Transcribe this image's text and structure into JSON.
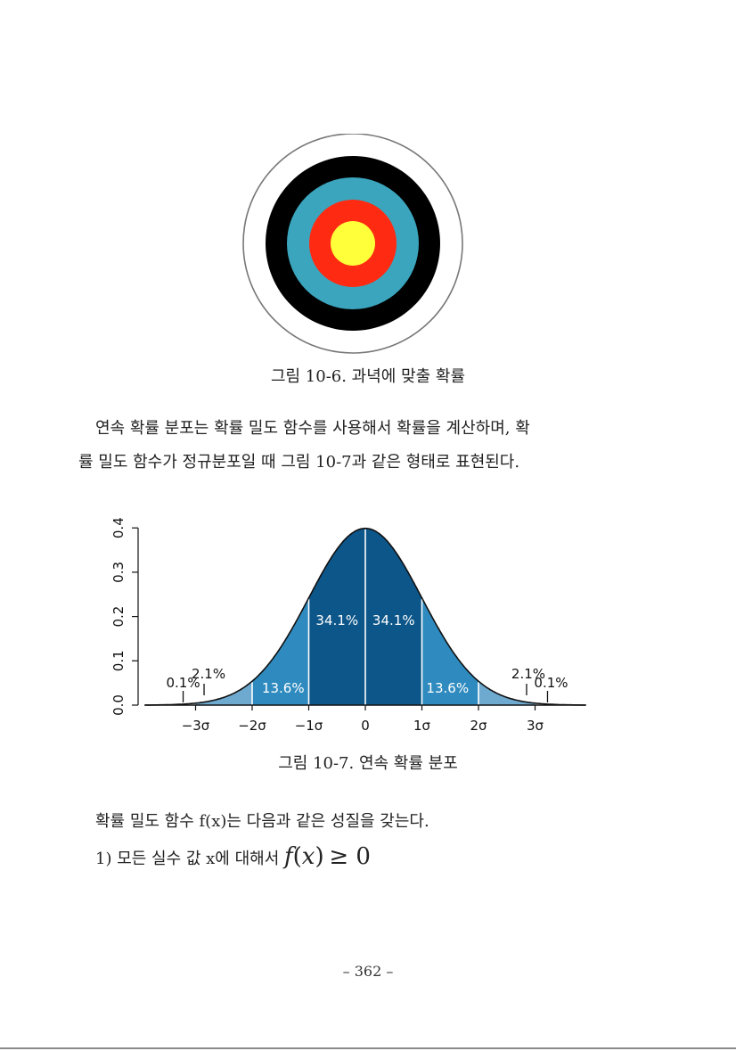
{
  "figure_10_6": {
    "caption": "그림 10-6. 과녁에 맞출 확률",
    "colors": {
      "outer_ring": "#ffffff",
      "outer_ring_stroke": "#777777",
      "black_ring": "#000000",
      "blue_ring": "#3aa5bd",
      "red_ring": "#ff2a12",
      "center": "#ffff3a"
    }
  },
  "paragraph_1": {
    "line_1": "연속 확률 분포는 확률 밀도 함수를 사용해서 확률을 계산하며, 확",
    "line_2": "률 밀도 함수가 정규분포일 때 그림 10-7과 같은 형태로 표현된다."
  },
  "figure_10_7": {
    "caption": "그림 10-7. 연속 확률 분포"
  },
  "chart_data": {
    "type": "area",
    "title": "",
    "xlabel": "",
    "ylabel": "",
    "x_range": [
      -3.9,
      3.9
    ],
    "ylim": [
      0.0,
      0.4
    ],
    "y_ticks": [
      "0.0",
      "0.1",
      "0.2",
      "0.3",
      "0.4"
    ],
    "x_ticks": [
      {
        "value": -3,
        "label": "−3σ"
      },
      {
        "value": -2,
        "label": "−2σ"
      },
      {
        "value": -1,
        "label": "−1σ"
      },
      {
        "value": 0,
        "label": "0"
      },
      {
        "value": 1,
        "label": "1σ"
      },
      {
        "value": 2,
        "label": "2σ"
      },
      {
        "value": 3,
        "label": "3σ"
      }
    ],
    "curve": "standard normal density",
    "regions": [
      {
        "from": -3,
        "to": -2,
        "percent": "2.1%",
        "color": "#6ea9d0"
      },
      {
        "from": -2,
        "to": -1,
        "percent": "13.6%",
        "color": "#2f8bbf"
      },
      {
        "from": -1,
        "to": 0,
        "percent": "34.1%",
        "color": "#0d5689"
      },
      {
        "from": 0,
        "to": 1,
        "percent": "34.1%",
        "color": "#0d5689"
      },
      {
        "from": 1,
        "to": 2,
        "percent": "13.6%",
        "color": "#2f8bbf"
      },
      {
        "from": 2,
        "to": 3,
        "percent": "2.1%",
        "color": "#6ea9d0"
      }
    ],
    "tail_labels": [
      {
        "at": -3.1,
        "percent": "0.1%"
      },
      {
        "at": 3.1,
        "percent": "0.1%"
      }
    ]
  },
  "paragraph_2": {
    "text": "확률 밀도 함수 f(x)는 다음과 같은 성질을 갖는다."
  },
  "property_1": {
    "prefix": "1) 모든 실수 값 x에 대해서",
    "math_f": "f",
    "math_open": "(",
    "math_x": "x",
    "math_close": ")",
    "math_rel": "≥ 0"
  },
  "page_number": "–  362  –"
}
